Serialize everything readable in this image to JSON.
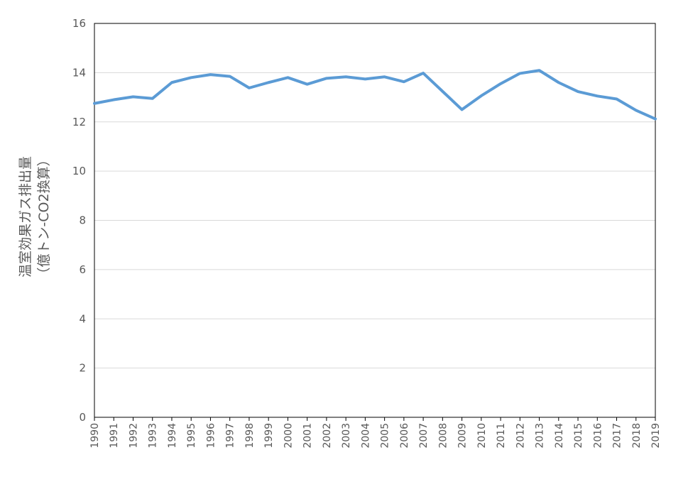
{
  "chart_data": {
    "type": "line",
    "title": "",
    "xlabel": "",
    "ylabel_lines": [
      "温室効果ガス排出量",
      "（億トン-CO2換算）"
    ],
    "ylim": [
      0,
      16
    ],
    "yticks": [
      0,
      2,
      4,
      6,
      8,
      10,
      12,
      14,
      16
    ],
    "grid": true,
    "legend": "none",
    "line_color": "#5b9bd5",
    "grid_color": "#d9d9d9",
    "axis_color": "#000000",
    "x": [
      "1990",
      "1991",
      "1992",
      "1993",
      "1994",
      "1995",
      "1996",
      "1997",
      "1998",
      "1999",
      "2000",
      "2001",
      "2002",
      "2003",
      "2004",
      "2005",
      "2006",
      "2007",
      "2008",
      "2009",
      "2010",
      "2011",
      "2012",
      "2013",
      "2014",
      "2015",
      "2016",
      "2017",
      "2018",
      "2019"
    ],
    "series": [
      {
        "values": [
          12.75,
          12.9,
          13.02,
          12.95,
          13.6,
          13.8,
          13.92,
          13.85,
          13.38,
          13.6,
          13.8,
          13.53,
          13.77,
          13.83,
          13.74,
          13.83,
          13.63,
          13.98,
          13.24,
          12.5,
          13.06,
          13.55,
          13.97,
          14.09,
          13.6,
          13.23,
          13.05,
          12.93,
          12.47,
          12.12
        ]
      }
    ]
  }
}
